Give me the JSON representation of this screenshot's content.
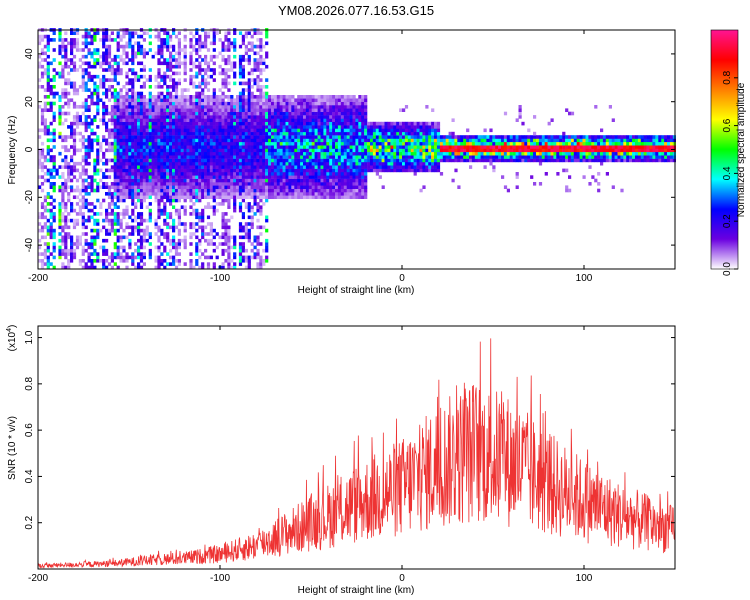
{
  "page_title": "YM08.2026.077.16.53.G15",
  "chart_data": [
    {
      "type": "heatmap",
      "title": "YM08.2026.077.16.53.G15",
      "xlabel": "Height of straight line (km)",
      "ylabel": "Frequency (Hz)",
      "xlim": [
        -200,
        150
      ],
      "ylim": [
        -50,
        50
      ],
      "xticks": [
        -200,
        -100,
        0,
        100
      ],
      "yticks": [
        -40,
        -20,
        0,
        20,
        40
      ],
      "colorbar": {
        "label": "Normalized spectral amplitude",
        "range": [
          0,
          1
        ],
        "ticks": [
          0.0,
          0.2,
          0.4,
          0.6,
          0.8
        ],
        "colormap": [
          "#ffffff",
          "#6a00e0",
          "#0000ff",
          "#00ffff",
          "#00ff00",
          "#ffff00",
          "#ff7f00",
          "#ff0000",
          "#ff1493"
        ]
      },
      "description_of_structure": {
        "noisy_region_km": [
          -200,
          -75
        ],
        "signal_frequency_hz": 0,
        "peak_band_km": [
          20,
          150
        ]
      }
    },
    {
      "type": "line",
      "xlabel": "Height of straight line (km)",
      "ylabel": "SNR (10 * v/v)",
      "multiplier_label": "(x10",
      "multiplier_exp": "4",
      "multiplier_close": ")",
      "xlim": [
        -200,
        150
      ],
      "ylim": [
        0,
        1.05
      ],
      "xticks": [
        -200,
        -100,
        0,
        100
      ],
      "yticks": [
        0.2,
        0.4,
        0.6,
        0.8,
        1.0
      ],
      "color": "#ee3333",
      "envelope": {
        "x": [
          -200,
          -160,
          -140,
          -120,
          -100,
          -80,
          -60,
          -40,
          -20,
          0,
          20,
          40,
          60,
          80,
          100,
          120,
          150
        ],
        "y": [
          0.015,
          0.025,
          0.04,
          0.05,
          0.07,
          0.11,
          0.18,
          0.25,
          0.32,
          0.38,
          0.48,
          0.55,
          0.5,
          0.4,
          0.32,
          0.25,
          0.18
        ]
      }
    }
  ]
}
